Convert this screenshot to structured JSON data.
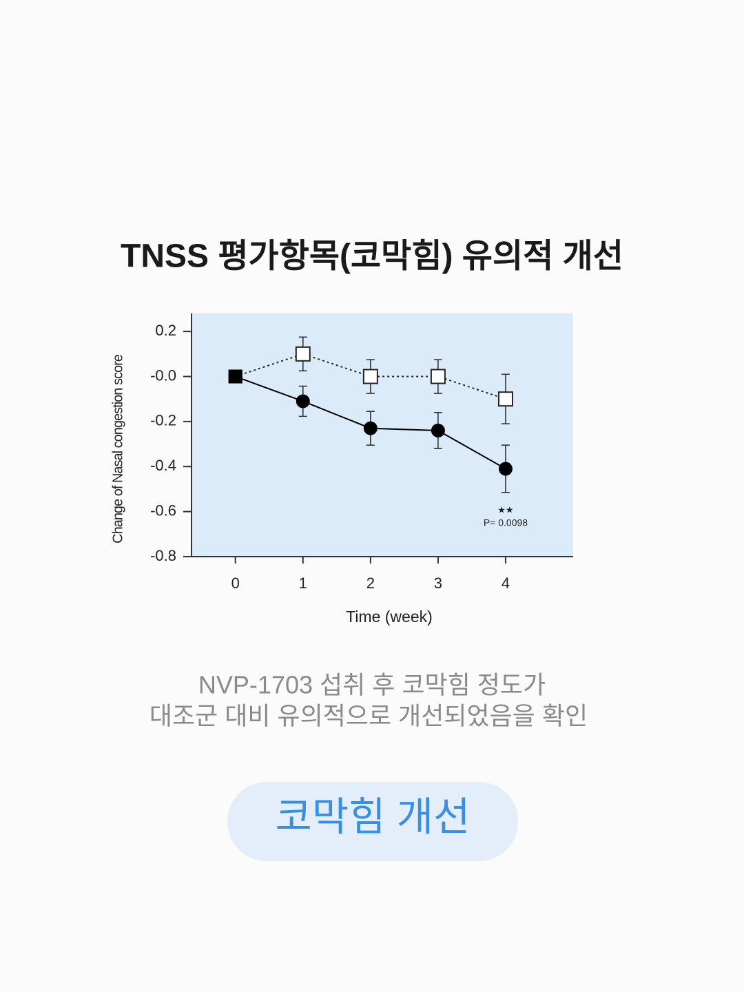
{
  "heading": "TNSS 평가항목(코막힘) 유의적 개선",
  "chart_data": {
    "type": "line",
    "ylabel": "Change of Nasal congestion score",
    "xlabel": "Time (week)",
    "x": [
      0,
      1,
      2,
      3,
      4
    ],
    "xlim": [
      -0.65,
      5
    ],
    "xticks": [
      0,
      1,
      2,
      3,
      4
    ],
    "ylim": [
      -0.8,
      0.28
    ],
    "yticks": [
      0.2,
      {
        "value": 0,
        "label": "-0.0"
      },
      -0.2,
      -0.4,
      -0.6,
      -0.8
    ],
    "background": "#dcebf9",
    "start_marker": "square",
    "series": [
      {
        "color": "#222222",
        "marker": "square-open",
        "dash": "dotted",
        "values": [
          0,
          0.1,
          0,
          0,
          -0.1
        ],
        "errors": [
          null,
          0.075,
          0.075,
          0.075,
          0.11
        ]
      },
      {
        "color": "#000000",
        "marker": "circle",
        "dash": "solid",
        "values": [
          0,
          -0.11,
          -0.23,
          -0.24,
          -0.41
        ],
        "errors": [
          null,
          0.067,
          0.075,
          0.08,
          0.105
        ]
      }
    ],
    "annotations": [
      {
        "text": "★★",
        "x": 4
      },
      {
        "text": "P= 0.0098",
        "x": 4
      }
    ]
  },
  "caption": [
    "NVP-1703 섭취 후 코막힘 정도가",
    "대조군 대비 유의적으로 개선되었음을 확인"
  ],
  "button": "코막힘 개선"
}
